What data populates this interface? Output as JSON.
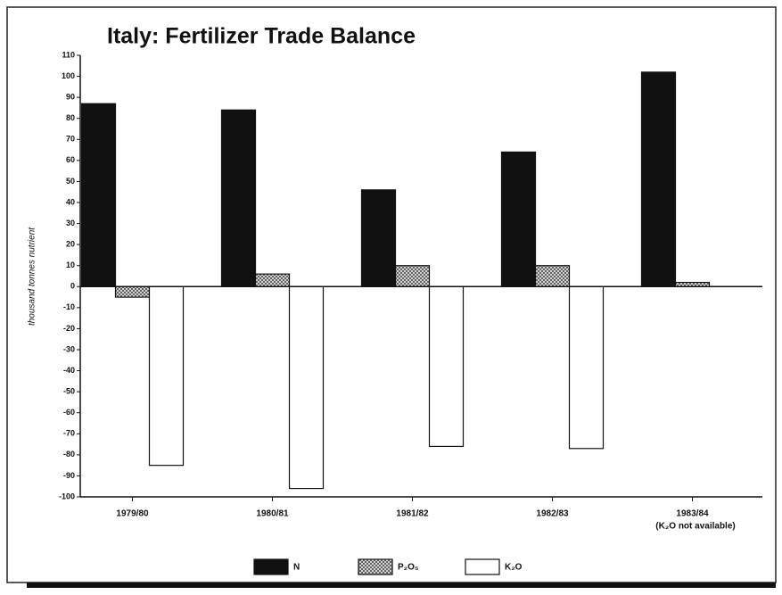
{
  "chart_data": {
    "type": "bar",
    "title": "Italy: Fertilizer Trade Balance",
    "y_label": "thousand tonnes nutrient",
    "categories": [
      "1979/80",
      "1980/81",
      "1981/82",
      "1982/83",
      "1983/84"
    ],
    "annotation": "(K₂O not available)",
    "series": [
      {
        "name": "N",
        "color": "#111111",
        "values": [
          87,
          84,
          46,
          64,
          102
        ]
      },
      {
        "name": "P₂O₅",
        "color": "#555555",
        "pattern": "crosshatch",
        "values": [
          -5,
          6,
          10,
          10,
          2
        ]
      },
      {
        "name": "K₂O",
        "color": "#ffffff",
        "values": [
          -85,
          -96,
          -76,
          -77,
          null
        ]
      }
    ],
    "ylim": [
      -100,
      110
    ],
    "yticks": [
      110,
      100,
      90,
      80,
      70,
      60,
      50,
      40,
      30,
      20,
      10,
      0,
      -10,
      -20,
      -30,
      -40,
      -50,
      -60,
      -70,
      -80,
      -90,
      -100
    ],
    "grid": false
  }
}
